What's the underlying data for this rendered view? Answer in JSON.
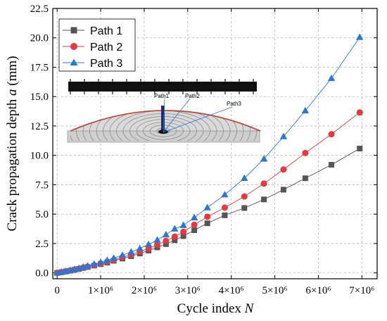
{
  "chart_data": {
    "type": "line",
    "title": "",
    "xlabel": "Cycle index ",
    "xlabel_var": "N",
    "ylabel": "Crack propagation depth  ",
    "ylabel_var": "a",
    "ylabel_unit": " (mm)",
    "xlim": [
      -0.1,
      7.35
    ],
    "ylim": [
      -0.5,
      22.5
    ],
    "x_unit_multiplier": 1000000,
    "x_ticks": [
      0,
      1,
      2,
      3,
      4,
      5,
      6,
      7
    ],
    "x_tick_labels": [
      "0",
      "1×10⁶",
      "2×10⁶",
      "3×10⁶",
      "4×10⁶",
      "5×10⁶",
      "6×10⁶",
      "7×10⁶"
    ],
    "y_ticks": [
      0,
      2.5,
      5,
      7.5,
      10,
      12.5,
      15,
      17.5,
      20,
      22.5
    ],
    "y_tick_labels": [
      "0.0",
      "2.5",
      "5.0",
      "7.5",
      "10.0",
      "12.5",
      "15.0",
      "17.5",
      "20.0",
      "22.5"
    ],
    "grid": true,
    "legend_position": "top-left",
    "series": [
      {
        "name": "Path  1",
        "color": "#555555",
        "marker": "square",
        "x": [
          0,
          0.1,
          0.2,
          0.3,
          0.4,
          0.5,
          0.6,
          0.7,
          0.85,
          1.0,
          1.15,
          1.3,
          1.5,
          1.7,
          1.9,
          2.1,
          2.3,
          2.5,
          2.7,
          2.9,
          3.15,
          3.45,
          3.85,
          4.3,
          4.75,
          5.2,
          5.7,
          6.3,
          6.95
        ],
        "y": [
          0.0,
          0.06,
          0.12,
          0.19,
          0.26,
          0.34,
          0.42,
          0.5,
          0.62,
          0.75,
          0.88,
          1.03,
          1.22,
          1.42,
          1.65,
          1.9,
          2.17,
          2.45,
          2.78,
          3.13,
          3.63,
          4.22,
          4.9,
          5.52,
          6.25,
          7.08,
          8.05,
          9.2,
          10.58
        ]
      },
      {
        "name": "Path  2",
        "color": "#e8383d",
        "marker": "circle",
        "x": [
          0,
          0.1,
          0.2,
          0.3,
          0.4,
          0.5,
          0.6,
          0.7,
          0.85,
          1.0,
          1.15,
          1.3,
          1.5,
          1.7,
          1.9,
          2.1,
          2.3,
          2.5,
          2.7,
          2.9,
          3.15,
          3.45,
          3.85,
          4.3,
          4.75,
          5.2,
          5.7,
          6.3,
          6.95
        ],
        "y": [
          0.0,
          0.06,
          0.13,
          0.2,
          0.27,
          0.35,
          0.44,
          0.53,
          0.66,
          0.8,
          0.95,
          1.1,
          1.32,
          1.55,
          1.8,
          2.08,
          2.38,
          2.72,
          3.08,
          3.5,
          4.1,
          4.78,
          5.55,
          6.5,
          7.6,
          8.8,
          10.2,
          11.8,
          13.65
        ]
      },
      {
        "name": "Path  3",
        "color": "#2a78d4",
        "marker": "triangle",
        "x": [
          0,
          0.1,
          0.2,
          0.3,
          0.4,
          0.5,
          0.6,
          0.7,
          0.85,
          1.0,
          1.15,
          1.3,
          1.5,
          1.7,
          1.9,
          2.1,
          2.3,
          2.5,
          2.7,
          2.9,
          3.15,
          3.45,
          3.85,
          4.3,
          4.75,
          5.2,
          5.7,
          6.3,
          6.95
        ],
        "y": [
          0.0,
          0.07,
          0.14,
          0.22,
          0.3,
          0.39,
          0.49,
          0.59,
          0.74,
          0.9,
          1.07,
          1.25,
          1.5,
          1.78,
          2.07,
          2.42,
          2.8,
          3.25,
          3.75,
          4.05,
          4.7,
          5.55,
          6.65,
          8.05,
          9.7,
          11.6,
          13.8,
          16.55,
          20.05
        ]
      }
    ],
    "inset": {
      "labels": [
        "Path1",
        "Path2",
        "Path3"
      ]
    }
  }
}
